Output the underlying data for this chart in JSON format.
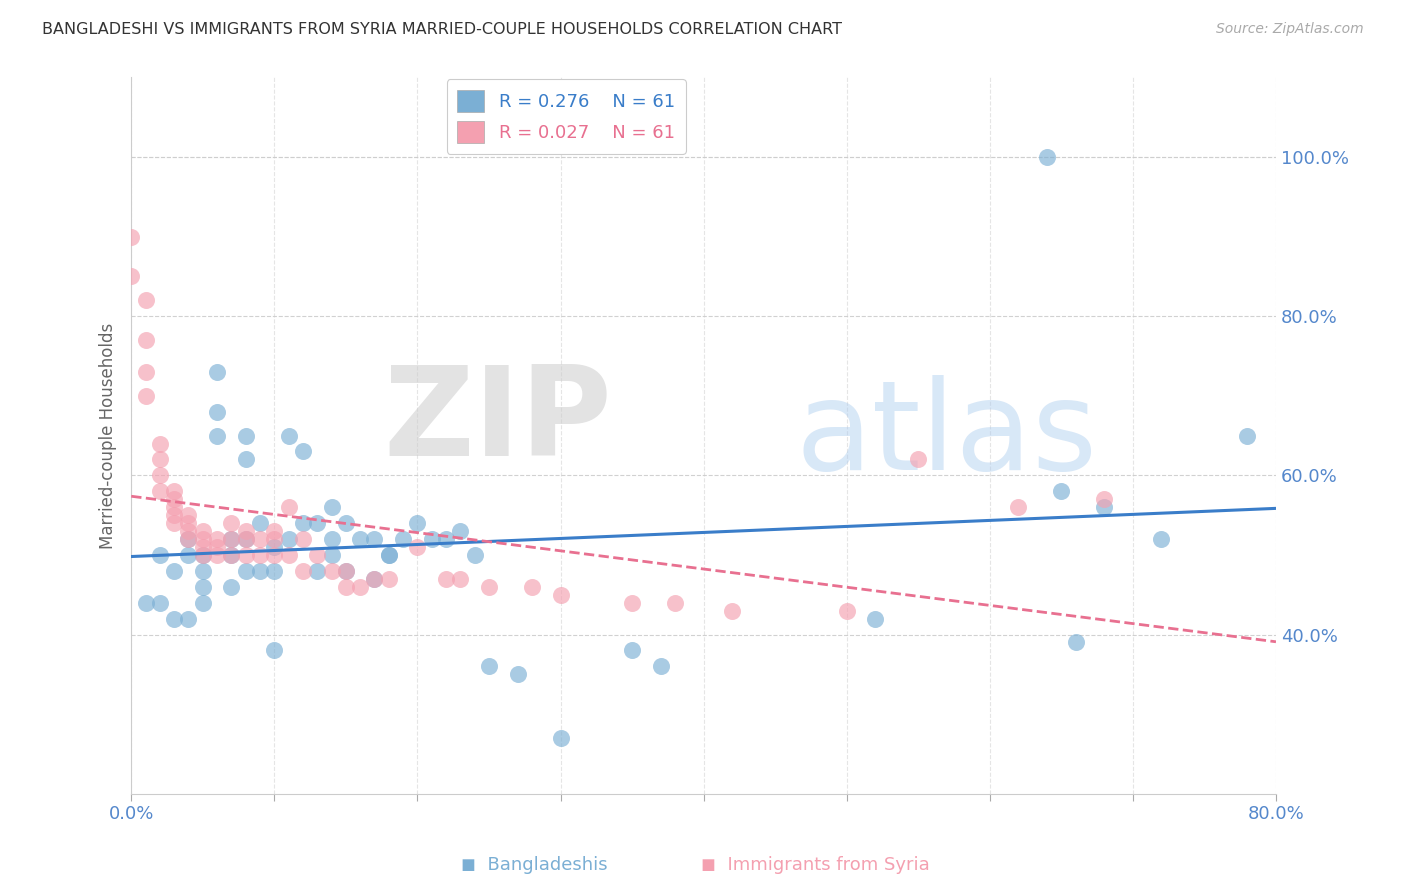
{
  "title": "BANGLADESHI VS IMMIGRANTS FROM SYRIA MARRIED-COUPLE HOUSEHOLDS CORRELATION CHART",
  "source": "Source: ZipAtlas.com",
  "ylabel": "Married-couple Households",
  "xlim": [
    0.0,
    0.8
  ],
  "ylim": [
    0.2,
    1.1
  ],
  "right_yticks": [
    0.4,
    0.6,
    0.8,
    1.0
  ],
  "right_ytick_labels": [
    "40.0%",
    "60.0%",
    "80.0%",
    "100.0%"
  ],
  "xticks": [
    0.0,
    0.1,
    0.2,
    0.3,
    0.4,
    0.5,
    0.6,
    0.7,
    0.8
  ],
  "xtick_labels": [
    "0.0%",
    "",
    "",
    "",
    "",
    "",
    "",
    "",
    "80.0%"
  ],
  "blue_R": 0.276,
  "blue_N": 61,
  "pink_R": 0.027,
  "pink_N": 61,
  "blue_color": "#7BAFD4",
  "pink_color": "#F4A0B0",
  "line_blue": "#3A7DC9",
  "line_pink": "#E87090",
  "axis_tick_color": "#5588CC",
  "grid_color": "#CCCCCC",
  "blue_x": [
    0.01,
    0.02,
    0.02,
    0.03,
    0.03,
    0.04,
    0.04,
    0.04,
    0.05,
    0.05,
    0.05,
    0.05,
    0.06,
    0.06,
    0.06,
    0.07,
    0.07,
    0.07,
    0.08,
    0.08,
    0.08,
    0.08,
    0.09,
    0.09,
    0.1,
    0.1,
    0.1,
    0.11,
    0.11,
    0.12,
    0.12,
    0.13,
    0.13,
    0.14,
    0.14,
    0.14,
    0.15,
    0.15,
    0.16,
    0.17,
    0.17,
    0.18,
    0.18,
    0.19,
    0.2,
    0.21,
    0.22,
    0.23,
    0.24,
    0.25,
    0.27,
    0.3,
    0.35,
    0.37,
    0.52,
    0.64,
    0.65,
    0.66,
    0.68,
    0.72,
    0.78
  ],
  "blue_y": [
    0.44,
    0.5,
    0.44,
    0.48,
    0.42,
    0.52,
    0.5,
    0.42,
    0.5,
    0.48,
    0.46,
    0.44,
    0.73,
    0.68,
    0.65,
    0.52,
    0.5,
    0.46,
    0.65,
    0.62,
    0.52,
    0.48,
    0.54,
    0.48,
    0.51,
    0.48,
    0.38,
    0.65,
    0.52,
    0.63,
    0.54,
    0.54,
    0.48,
    0.56,
    0.52,
    0.5,
    0.54,
    0.48,
    0.52,
    0.52,
    0.47,
    0.5,
    0.5,
    0.52,
    0.54,
    0.52,
    0.52,
    0.53,
    0.5,
    0.36,
    0.35,
    0.27,
    0.38,
    0.36,
    0.42,
    1.0,
    0.58,
    0.39,
    0.56,
    0.52,
    0.65
  ],
  "pink_x": [
    0.0,
    0.0,
    0.01,
    0.01,
    0.01,
    0.01,
    0.02,
    0.02,
    0.02,
    0.02,
    0.03,
    0.03,
    0.03,
    0.03,
    0.03,
    0.04,
    0.04,
    0.04,
    0.04,
    0.05,
    0.05,
    0.05,
    0.05,
    0.06,
    0.06,
    0.06,
    0.07,
    0.07,
    0.07,
    0.08,
    0.08,
    0.08,
    0.09,
    0.09,
    0.1,
    0.1,
    0.1,
    0.11,
    0.11,
    0.12,
    0.12,
    0.13,
    0.14,
    0.15,
    0.15,
    0.16,
    0.17,
    0.18,
    0.2,
    0.22,
    0.23,
    0.25,
    0.28,
    0.3,
    0.35,
    0.38,
    0.42,
    0.5,
    0.55,
    0.62,
    0.68
  ],
  "pink_y": [
    0.9,
    0.85,
    0.82,
    0.77,
    0.73,
    0.7,
    0.64,
    0.62,
    0.6,
    0.58,
    0.58,
    0.57,
    0.56,
    0.55,
    0.54,
    0.55,
    0.54,
    0.53,
    0.52,
    0.53,
    0.52,
    0.51,
    0.5,
    0.52,
    0.51,
    0.5,
    0.54,
    0.52,
    0.5,
    0.53,
    0.52,
    0.5,
    0.52,
    0.5,
    0.53,
    0.52,
    0.5,
    0.56,
    0.5,
    0.52,
    0.48,
    0.5,
    0.48,
    0.48,
    0.46,
    0.46,
    0.47,
    0.47,
    0.51,
    0.47,
    0.47,
    0.46,
    0.46,
    0.45,
    0.44,
    0.44,
    0.43,
    0.43,
    0.62,
    0.56,
    0.57
  ]
}
